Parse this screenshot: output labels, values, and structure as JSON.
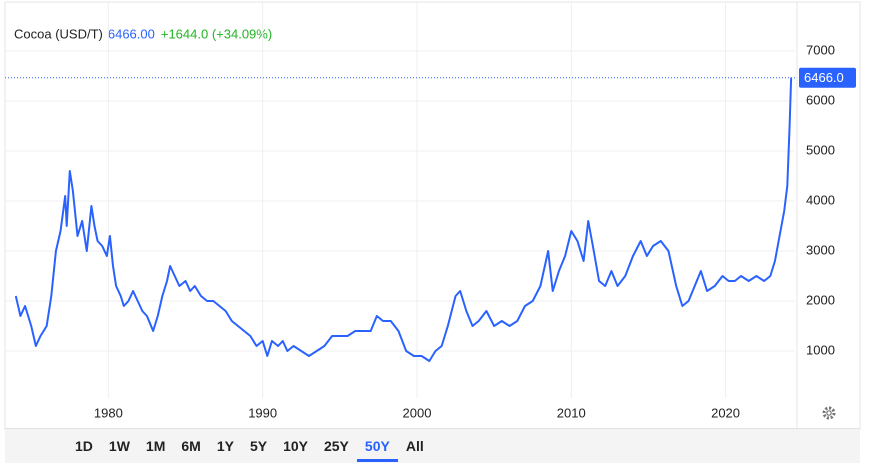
{
  "chart_data": {
    "type": "line",
    "title": "Cocoa (USD/T)",
    "price_label": "6466.00",
    "change_label": "+1644.0 (+34.09%)",
    "last_label": "6466.0",
    "color": "#2962ff",
    "grid": true,
    "xlim": [
      1973.3,
      2024.5
    ],
    "xticks": [
      1980,
      1990,
      2000,
      2010,
      2020
    ],
    "ylim": [
      0,
      7900
    ],
    "yticks": [
      1000,
      2000,
      3000,
      4000,
      5000,
      6000,
      7000
    ],
    "x": [
      1974.0,
      1974.3,
      1974.6,
      1975.0,
      1975.3,
      1975.6,
      1976.0,
      1976.3,
      1976.6,
      1976.9,
      1977.2,
      1977.3,
      1977.5,
      1977.7,
      1978.0,
      1978.3,
      1978.6,
      1978.9,
      1979.1,
      1979.3,
      1979.6,
      1979.9,
      1980.1,
      1980.3,
      1980.5,
      1980.8,
      1981.0,
      1981.3,
      1981.6,
      1981.9,
      1982.2,
      1982.5,
      1982.9,
      1983.2,
      1983.5,
      1983.8,
      1984.0,
      1984.3,
      1984.6,
      1985.0,
      1985.3,
      1985.6,
      1986.0,
      1986.4,
      1986.8,
      1987.2,
      1987.6,
      1988.0,
      1988.4,
      1988.8,
      1989.2,
      1989.6,
      1990.0,
      1990.3,
      1990.6,
      1991.0,
      1991.3,
      1991.6,
      1992.0,
      1992.5,
      1993.0,
      1993.5,
      1994.0,
      1994.5,
      1995.0,
      1995.5,
      1996.0,
      1996.5,
      1997.0,
      1997.4,
      1997.8,
      1998.3,
      1998.8,
      1999.3,
      1999.8,
      2000.3,
      2000.8,
      2001.2,
      2001.6,
      2002.0,
      2002.5,
      2002.8,
      2003.2,
      2003.6,
      2004.0,
      2004.5,
      2005.0,
      2005.5,
      2006.0,
      2006.5,
      2007.0,
      2007.5,
      2008.0,
      2008.5,
      2008.8,
      2009.2,
      2009.6,
      2010.0,
      2010.4,
      2010.8,
      2011.1,
      2011.4,
      2011.8,
      2012.2,
      2012.6,
      2013.0,
      2013.5,
      2014.0,
      2014.5,
      2014.9,
      2015.3,
      2015.8,
      2016.3,
      2016.8,
      2017.2,
      2017.6,
      2018.0,
      2018.4,
      2018.8,
      2019.3,
      2019.8,
      2020.2,
      2020.6,
      2021.0,
      2021.5,
      2022.0,
      2022.5,
      2022.9,
      2023.2,
      2023.5,
      2023.8,
      2024.0,
      2024.15,
      2024.25
    ],
    "values": [
      2100,
      1700,
      1900,
      1500,
      1100,
      1300,
      1500,
      2100,
      3000,
      3400,
      4100,
      3500,
      4600,
      4200,
      3300,
      3600,
      3000,
      3900,
      3500,
      3200,
      3100,
      2900,
      3300,
      2700,
      2300,
      2100,
      1900,
      2000,
      2200,
      2000,
      1800,
      1700,
      1400,
      1700,
      2100,
      2400,
      2700,
      2500,
      2300,
      2400,
      2200,
      2300,
      2100,
      2000,
      2000,
      1900,
      1800,
      1600,
      1500,
      1400,
      1300,
      1100,
      1200,
      900,
      1200,
      1100,
      1200,
      1000,
      1100,
      1000,
      900,
      1000,
      1100,
      1300,
      1300,
      1300,
      1400,
      1400,
      1400,
      1700,
      1600,
      1600,
      1400,
      1000,
      900,
      900,
      800,
      1000,
      1100,
      1500,
      2100,
      2200,
      1800,
      1500,
      1600,
      1800,
      1500,
      1600,
      1500,
      1600,
      1900,
      2000,
      2300,
      3000,
      2200,
      2600,
      2900,
      3400,
      3200,
      2800,
      3600,
      3100,
      2400,
      2300,
      2600,
      2300,
      2500,
      2900,
      3200,
      2900,
      3100,
      3200,
      3000,
      2300,
      1900,
      2000,
      2300,
      2600,
      2200,
      2300,
      2500,
      2400,
      2400,
      2500,
      2400,
      2500,
      2400,
      2500,
      2800,
      3300,
      3800,
      4300,
      5500,
      6466
    ]
  },
  "toolbar": {
    "ranges": [
      "1D",
      "1W",
      "1M",
      "6M",
      "1Y",
      "5Y",
      "10Y",
      "25Y",
      "50Y",
      "All"
    ],
    "selected": 8
  }
}
